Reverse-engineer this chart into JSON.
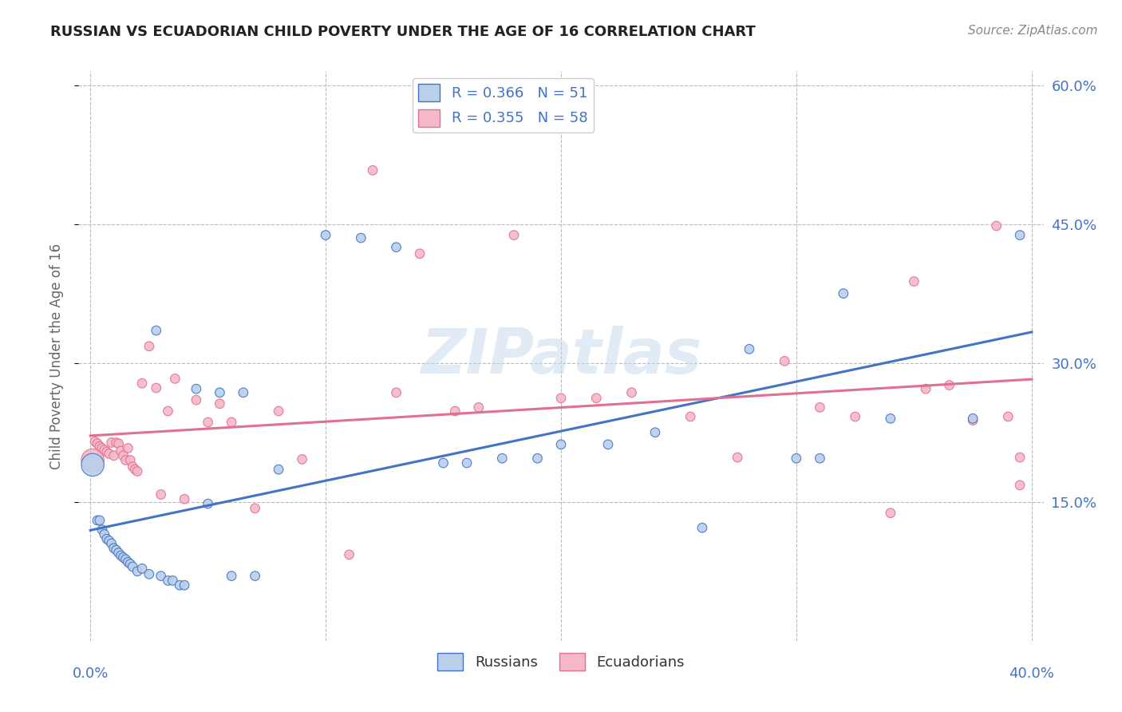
{
  "title": "RUSSIAN VS ECUADORIAN CHILD POVERTY UNDER THE AGE OF 16 CORRELATION CHART",
  "source": "Source: ZipAtlas.com",
  "ylabel": "Child Poverty Under the Age of 16",
  "xlim": [
    -0.005,
    0.405
  ],
  "ylim": [
    0.0,
    0.615
  ],
  "xtick_positions": [
    0.0,
    0.1,
    0.2,
    0.3,
    0.4
  ],
  "ytick_positions": [
    0.15,
    0.3,
    0.45,
    0.6
  ],
  "xticklabels_bottom": [
    "0.0%",
    "",
    "",
    "",
    "40.0%"
  ],
  "yticklabels_right": [
    "15.0%",
    "30.0%",
    "45.0%",
    "60.0%"
  ],
  "russians_R": 0.366,
  "russians_N": 51,
  "ecuadorians_R": 0.355,
  "ecuadorians_N": 58,
  "russian_fill_color": "#b8d0ea",
  "ecuadorian_fill_color": "#f5b8c8",
  "russian_edge_color": "#4472c4",
  "ecuadorian_edge_color": "#e07090",
  "russian_line_color": "#4472c4",
  "ecuadorian_line_color": "#e07090",
  "watermark": "ZIPatlas",
  "background_color": "#ffffff",
  "grid_color": "#bbbbbb",
  "russians_x": [
    0.001,
    0.003,
    0.004,
    0.005,
    0.006,
    0.007,
    0.008,
    0.009,
    0.01,
    0.011,
    0.012,
    0.013,
    0.014,
    0.015,
    0.016,
    0.017,
    0.018,
    0.02,
    0.022,
    0.025,
    0.028,
    0.03,
    0.033,
    0.035,
    0.038,
    0.04,
    0.045,
    0.05,
    0.055,
    0.06,
    0.065,
    0.07,
    0.08,
    0.1,
    0.115,
    0.13,
    0.15,
    0.16,
    0.175,
    0.19,
    0.2,
    0.22,
    0.24,
    0.26,
    0.28,
    0.3,
    0.31,
    0.32,
    0.34,
    0.375,
    0.395
  ],
  "russians_y": [
    0.19,
    0.13,
    0.13,
    0.12,
    0.115,
    0.11,
    0.108,
    0.105,
    0.1,
    0.098,
    0.095,
    0.092,
    0.09,
    0.088,
    0.085,
    0.083,
    0.08,
    0.075,
    0.078,
    0.072,
    0.335,
    0.07,
    0.065,
    0.065,
    0.06,
    0.06,
    0.272,
    0.148,
    0.268,
    0.07,
    0.268,
    0.07,
    0.185,
    0.438,
    0.435,
    0.425,
    0.192,
    0.192,
    0.197,
    0.197,
    0.212,
    0.212,
    0.225,
    0.122,
    0.315,
    0.197,
    0.197,
    0.375,
    0.24,
    0.24,
    0.438
  ],
  "ecuadorians_x": [
    0.001,
    0.002,
    0.003,
    0.004,
    0.005,
    0.006,
    0.007,
    0.008,
    0.009,
    0.01,
    0.011,
    0.012,
    0.013,
    0.014,
    0.015,
    0.016,
    0.017,
    0.018,
    0.019,
    0.02,
    0.022,
    0.025,
    0.028,
    0.03,
    0.033,
    0.036,
    0.04,
    0.045,
    0.05,
    0.055,
    0.06,
    0.07,
    0.08,
    0.09,
    0.11,
    0.12,
    0.13,
    0.14,
    0.155,
    0.165,
    0.18,
    0.2,
    0.215,
    0.23,
    0.255,
    0.275,
    0.295,
    0.31,
    0.325,
    0.34,
    0.35,
    0.355,
    0.365,
    0.375,
    0.385,
    0.39,
    0.395,
    0.395
  ],
  "ecuadorians_y": [
    0.195,
    0.215,
    0.213,
    0.21,
    0.208,
    0.206,
    0.204,
    0.202,
    0.214,
    0.2,
    0.214,
    0.213,
    0.205,
    0.2,
    0.195,
    0.208,
    0.195,
    0.188,
    0.185,
    0.183,
    0.278,
    0.318,
    0.273,
    0.158,
    0.248,
    0.283,
    0.153,
    0.26,
    0.236,
    0.256,
    0.236,
    0.143,
    0.248,
    0.196,
    0.093,
    0.508,
    0.268,
    0.418,
    0.248,
    0.252,
    0.438,
    0.262,
    0.262,
    0.268,
    0.242,
    0.198,
    0.302,
    0.252,
    0.242,
    0.138,
    0.388,
    0.272,
    0.276,
    0.238,
    0.448,
    0.242,
    0.198,
    0.168
  ],
  "russian_big_marker_idx": 0,
  "ecuadorian_big_marker_idx": 0
}
